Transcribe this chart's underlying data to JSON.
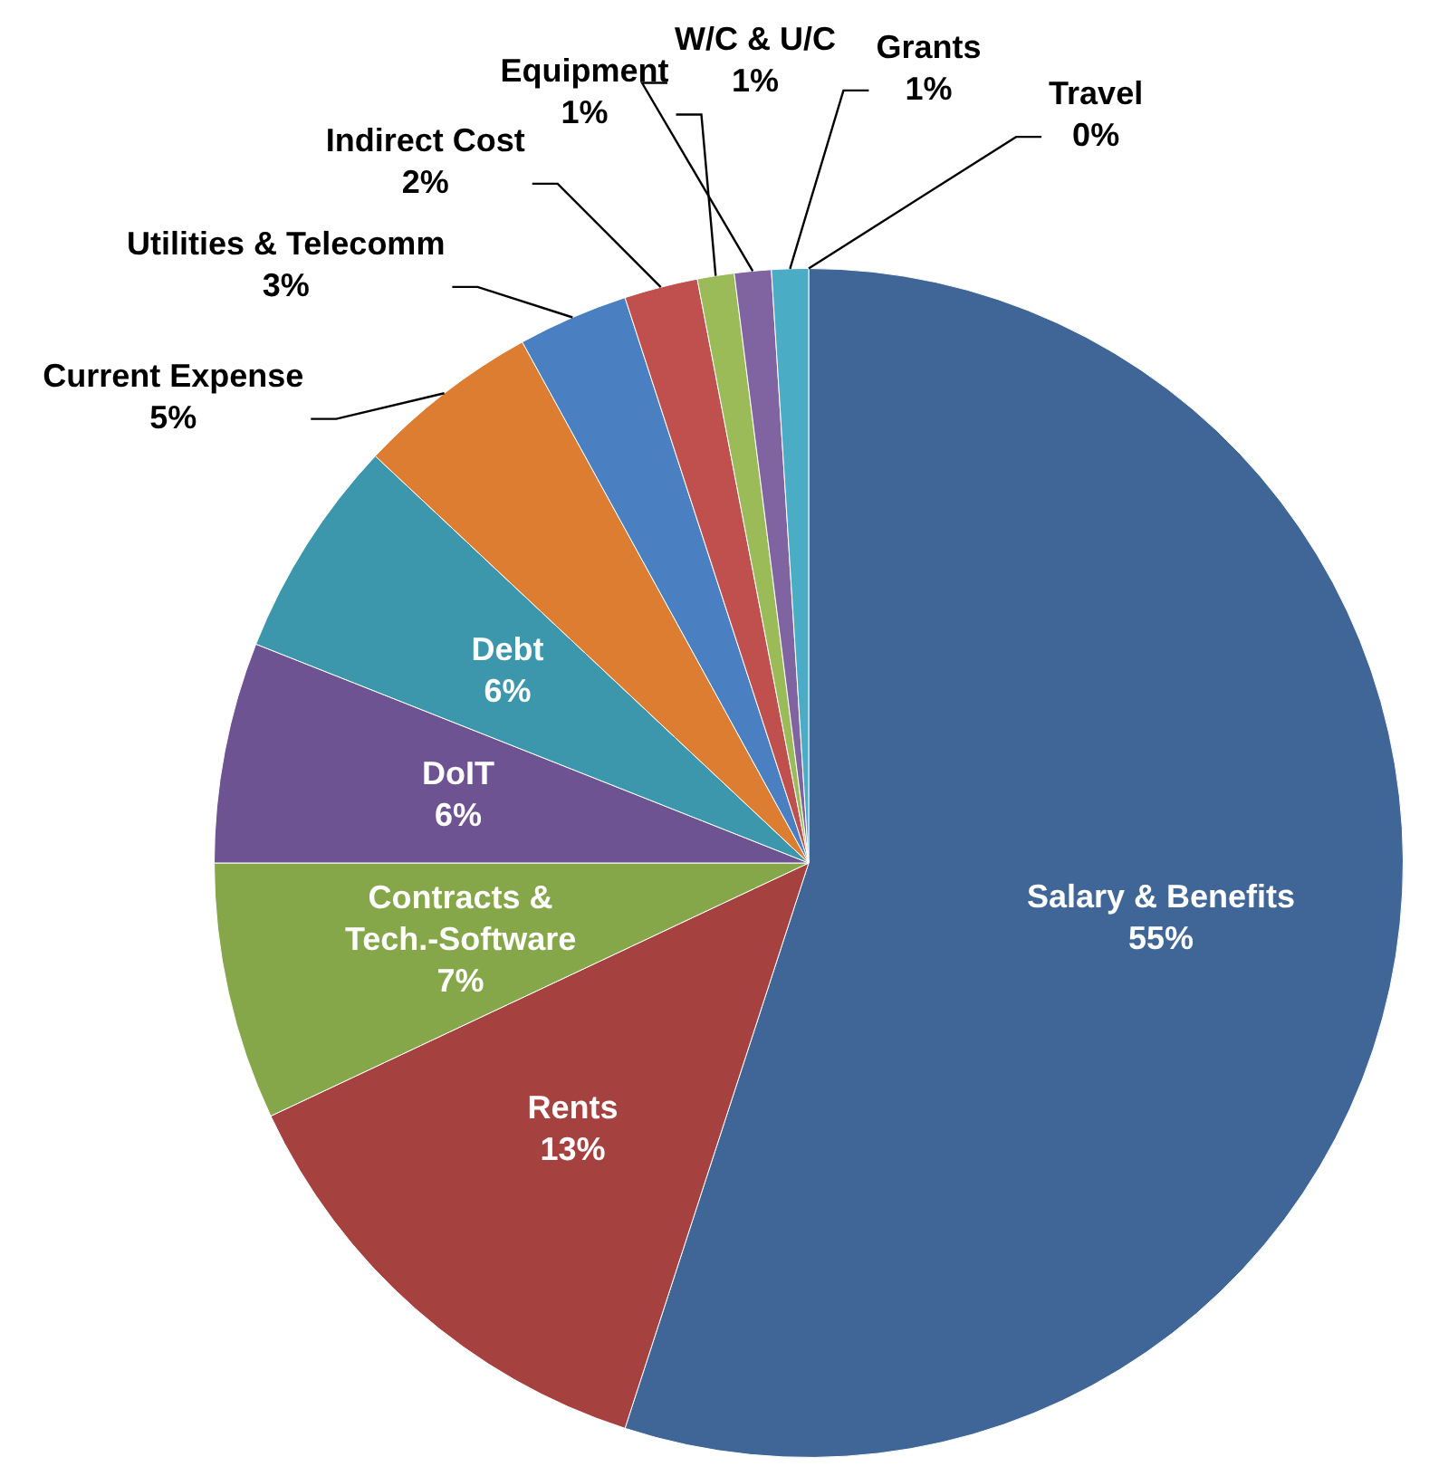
{
  "chart_data": {
    "type": "pie",
    "categories": [
      "Salary & Benefits",
      "Rents",
      "Contracts & Tech.-Software",
      "DoIT",
      "Debt",
      "Current Expense",
      "Utilities & Telecomm",
      "Indirect Cost",
      "Equipment",
      "W/C & U/C",
      "Grants",
      "Travel"
    ],
    "values": [
      55,
      13,
      7,
      6,
      6,
      5,
      3,
      2,
      1,
      1,
      1,
      0
    ],
    "value_labels": [
      "55%",
      "13%",
      "7%",
      "6%",
      "6%",
      "5%",
      "3%",
      "2%",
      "1%",
      "1%",
      "1%",
      "0%"
    ],
    "colors": [
      "#3f6696",
      "#a5413f",
      "#86a64a",
      "#6e5393",
      "#3c97ad",
      "#dc7d32",
      "#4a7fc1",
      "#c0504d",
      "#9bbb59",
      "#8064a2",
      "#4bacc6",
      "#f79646"
    ],
    "legend": false
  }
}
